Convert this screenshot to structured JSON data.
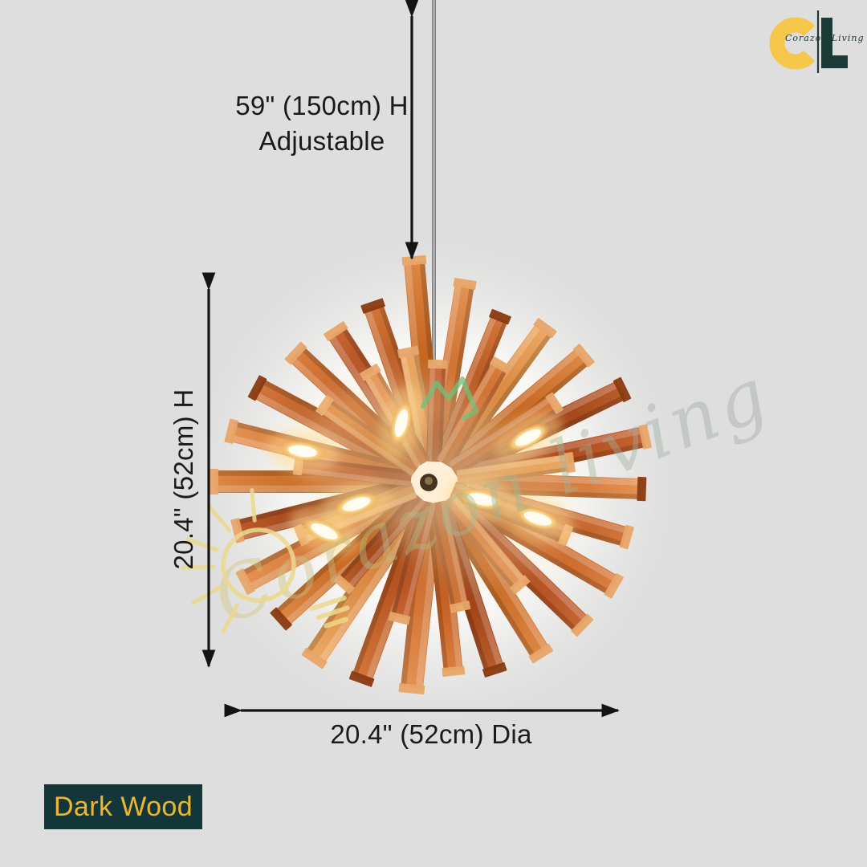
{
  "page": {
    "background_color": "#dedede"
  },
  "brand": {
    "script_text": "Corazon Living",
    "monogram": "CL",
    "gold_color": "#f5c84b",
    "dark_green_color": "#1c3a36"
  },
  "dimensions": {
    "hanging_height": {
      "value": "59\" (150cm) H",
      "note": "Adjustable"
    },
    "fixture_height": {
      "value": "20.4\" (52cm) H"
    },
    "diameter": {
      "value": "20.4\" (52cm) Dia"
    }
  },
  "variant": {
    "label": "Dark Wood",
    "bg_color": "#133739",
    "text_color": "#eeb62f"
  },
  "watermark": {
    "script_text": "Corazon living"
  },
  "product": {
    "wood_colors": [
      "#b5531e",
      "#c4641f",
      "#a84417",
      "#cf7030",
      "#c05a1d",
      "#993b12",
      "#d8863f",
      "#b04c18"
    ]
  }
}
